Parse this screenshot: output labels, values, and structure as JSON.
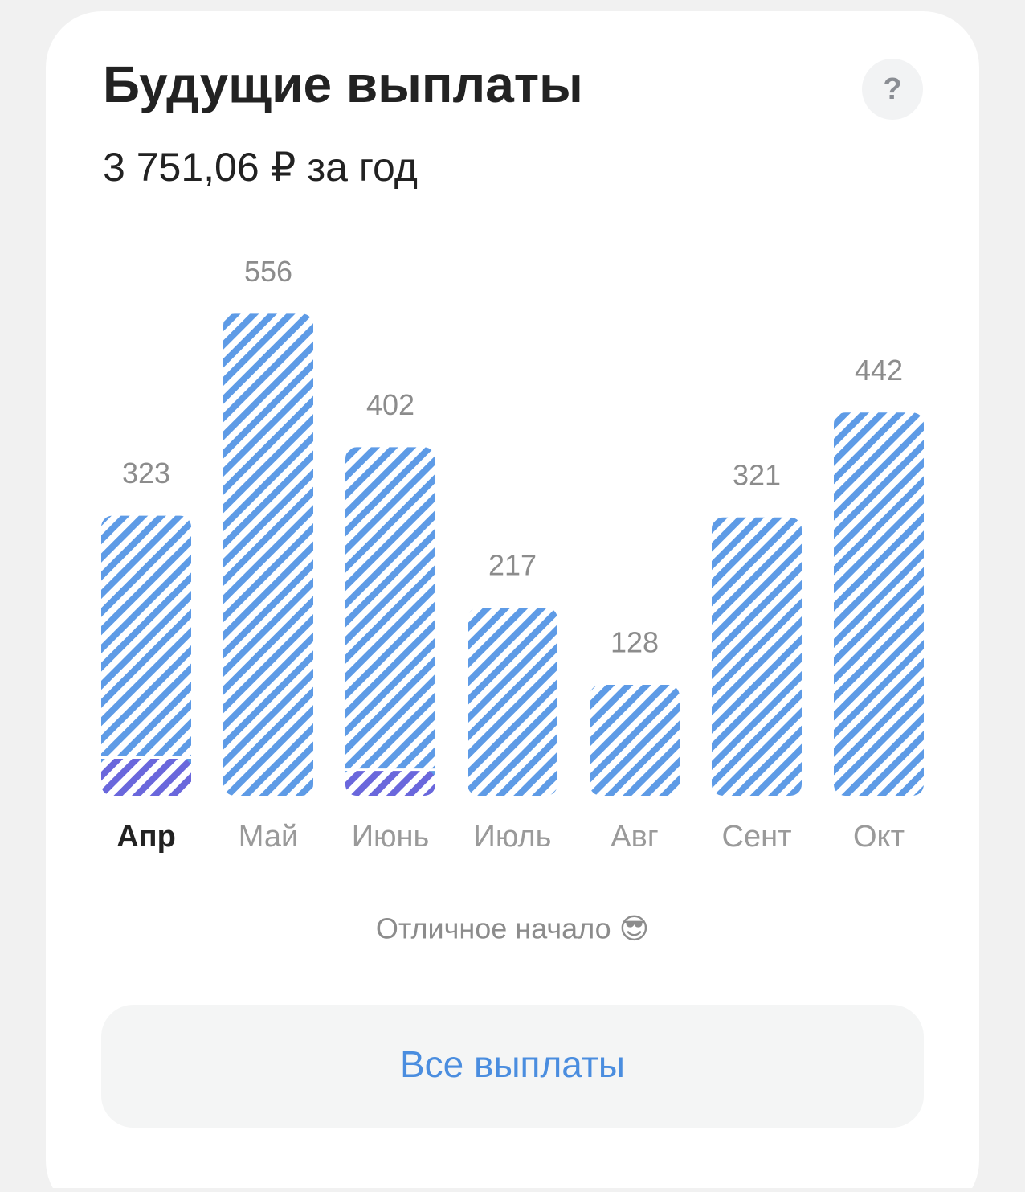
{
  "chart_data": {
    "type": "bar",
    "title": "Будущие выплаты",
    "subtitle": "3 751,06 ₽ за год",
    "categories": [
      "Апр",
      "Май",
      "Июнь",
      "Июль",
      "Авг",
      "Сент",
      "Окт"
    ],
    "values": [
      323,
      556,
      402,
      217,
      128,
      321,
      442
    ],
    "highlight_values": [
      44,
      null,
      30,
      null,
      null,
      null,
      null
    ],
    "color": "#5e9be6",
    "highlight_color": "#6a67dc",
    "selected": 0,
    "ylim": [
      0,
      560
    ],
    "annotation": "Отличное начало 😎"
  },
  "help_button": "?",
  "action_button": "Все выплаты"
}
